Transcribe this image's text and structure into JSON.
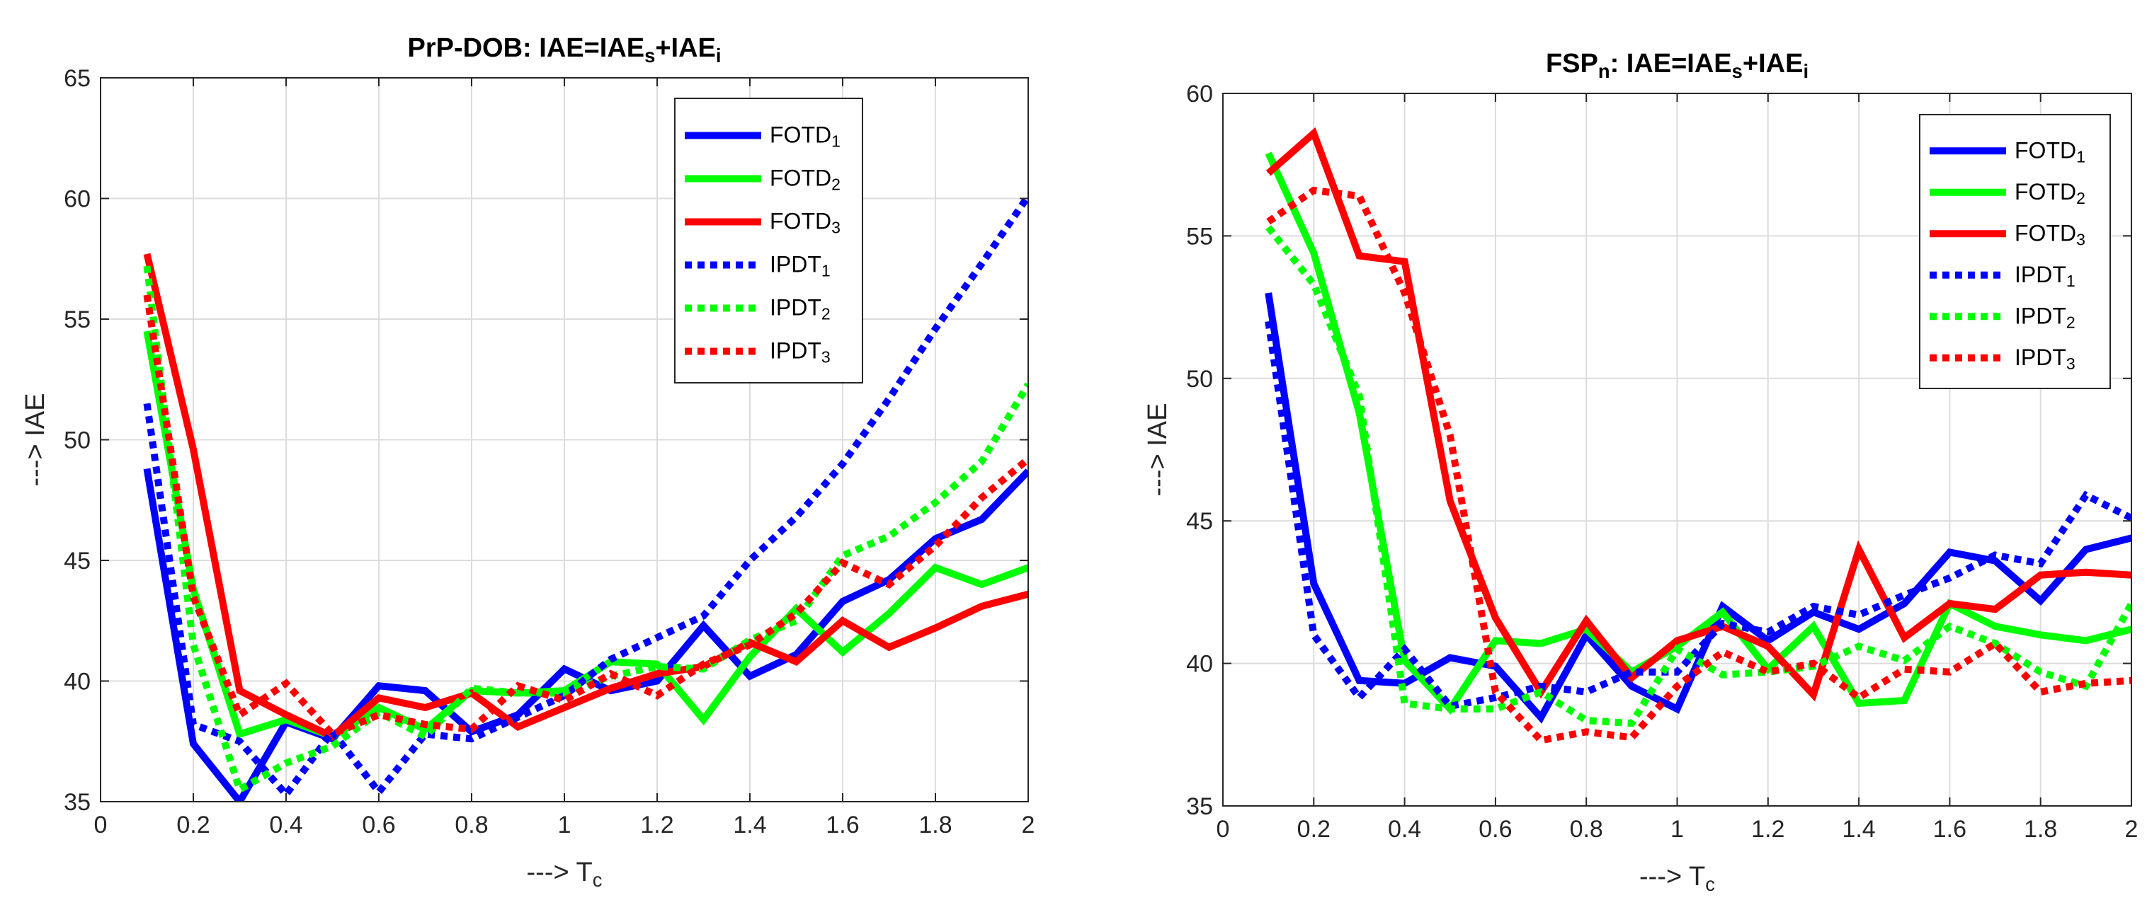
{
  "chart_data": [
    {
      "type": "line",
      "title": {
        "main": "PrP-DOB: IAE=IAE",
        "parts": [
          {
            "text": "s",
            "sub": true
          },
          {
            "text": "+IAE",
            "sub": false
          },
          {
            "text": "i",
            "sub": true
          }
        ]
      },
      "xlabel": {
        "main": "---> T",
        "sub": "c"
      },
      "ylabel": "---> IAE",
      "xlim": [
        0,
        2
      ],
      "ylim": [
        35,
        65
      ],
      "xticks": [
        0,
        0.2,
        0.4,
        0.6,
        0.8,
        1,
        1.2,
        1.4,
        1.6,
        1.8,
        2
      ],
      "xtick_labels": [
        "0",
        "0.2",
        "0.4",
        "0.6",
        "0.8",
        "1",
        "1.2",
        "1.4",
        "1.6",
        "1.8",
        "2"
      ],
      "yticks": [
        35,
        40,
        45,
        50,
        55,
        60,
        65
      ],
      "ytick_labels": [
        "35",
        "40",
        "45",
        "50",
        "55",
        "60",
        "65"
      ],
      "grid": true,
      "legend_position": "top-right",
      "x": [
        0.1,
        0.2,
        0.3,
        0.4,
        0.5,
        0.6,
        0.7,
        0.8,
        0.9,
        1.0,
        1.1,
        1.2,
        1.3,
        1.4,
        1.5,
        1.6,
        1.7,
        1.8,
        1.9,
        2.0
      ],
      "series": [
        {
          "name": "FOTD",
          "sub": "1",
          "color": "#0000ff",
          "style": "solid",
          "values": [
            48.8,
            37.4,
            35.0,
            38.3,
            37.6,
            39.8,
            39.6,
            37.9,
            38.6,
            40.5,
            39.6,
            40.0,
            42.3,
            40.2,
            41.1,
            43.3,
            44.2,
            45.9,
            46.7,
            48.7
          ]
        },
        {
          "name": "FOTD",
          "sub": "2",
          "color": "#00ff00",
          "style": "solid",
          "values": [
            54.5,
            43.8,
            37.8,
            38.4,
            37.7,
            38.9,
            38.0,
            39.6,
            39.5,
            39.6,
            40.8,
            40.7,
            38.4,
            41.0,
            43.0,
            41.2,
            42.8,
            44.7,
            44.0,
            44.7
          ]
        },
        {
          "name": "FOTD",
          "sub": "3",
          "color": "#ff0000",
          "style": "solid",
          "values": [
            57.7,
            49.6,
            39.6,
            38.6,
            37.7,
            39.3,
            38.9,
            39.5,
            38.1,
            38.9,
            39.7,
            40.3,
            40.6,
            41.6,
            40.8,
            42.5,
            41.4,
            42.2,
            43.1,
            43.6
          ]
        },
        {
          "name": "IPDT",
          "sub": "1",
          "color": "#0000ff",
          "style": "dotted",
          "values": [
            51.5,
            38.2,
            37.5,
            35.3,
            37.9,
            35.4,
            37.8,
            37.6,
            38.5,
            39.4,
            40.9,
            41.8,
            42.7,
            45.0,
            46.8,
            49.0,
            51.7,
            54.6,
            57.3,
            60.1
          ]
        },
        {
          "name": "IPDT",
          "sub": "2",
          "color": "#00ff00",
          "style": "dotted",
          "values": [
            57.2,
            41.5,
            35.5,
            36.6,
            37.3,
            38.7,
            37.7,
            39.7,
            39.5,
            39.5,
            40.2,
            40.6,
            40.5,
            41.7,
            42.5,
            45.2,
            46.0,
            47.4,
            49.1,
            52.3
          ]
        },
        {
          "name": "IPDT",
          "sub": "3",
          "color": "#ff0000",
          "style": "dotted",
          "values": [
            56.0,
            43.5,
            38.6,
            39.9,
            37.8,
            38.6,
            38.2,
            38.0,
            39.8,
            39.2,
            40.3,
            39.4,
            40.7,
            41.5,
            42.8,
            44.9,
            44.0,
            45.6,
            47.6,
            49.2
          ]
        }
      ]
    },
    {
      "type": "line",
      "title": {
        "main": "FSP",
        "parts": [
          {
            "text": "n",
            "sub": true
          },
          {
            "text": ": IAE=IAE",
            "sub": false
          },
          {
            "text": "s",
            "sub": true
          },
          {
            "text": "+IAE",
            "sub": false
          },
          {
            "text": "i",
            "sub": true
          }
        ]
      },
      "xlabel": {
        "main": "---> T",
        "sub": "c"
      },
      "ylabel": "---> IAE",
      "xlim": [
        0,
        2
      ],
      "ylim": [
        35,
        60
      ],
      "xticks": [
        0,
        0.2,
        0.4,
        0.6,
        0.8,
        1,
        1.2,
        1.4,
        1.6,
        1.8,
        2
      ],
      "xtick_labels": [
        "0",
        "0.2",
        "0.4",
        "0.6",
        "0.8",
        "1",
        "1.2",
        "1.4",
        "1.6",
        "1.8",
        "2"
      ],
      "yticks": [
        35,
        40,
        45,
        50,
        55,
        60
      ],
      "ytick_labels": [
        "35",
        "40",
        "45",
        "50",
        "55",
        "60"
      ],
      "grid": true,
      "legend_position": "top-right",
      "x": [
        0.1,
        0.2,
        0.3,
        0.4,
        0.5,
        0.6,
        0.7,
        0.8,
        0.9,
        1.0,
        1.1,
        1.2,
        1.3,
        1.4,
        1.5,
        1.6,
        1.7,
        1.8,
        1.9,
        2.0
      ],
      "series": [
        {
          "name": "FOTD",
          "sub": "1",
          "color": "#0000ff",
          "style": "solid",
          "values": [
            53.0,
            42.8,
            39.4,
            39.3,
            40.2,
            39.9,
            38.1,
            41.0,
            39.2,
            38.4,
            42.0,
            40.8,
            41.8,
            41.2,
            42.1,
            43.9,
            43.6,
            42.2,
            44.0,
            44.4
          ]
        },
        {
          "name": "FOTD",
          "sub": "2",
          "color": "#00ff00",
          "style": "solid",
          "values": [
            57.9,
            54.4,
            48.8,
            40.1,
            38.4,
            40.8,
            40.7,
            41.2,
            39.7,
            40.6,
            41.8,
            39.8,
            41.3,
            38.6,
            38.7,
            42.1,
            41.3,
            41.0,
            40.8,
            41.2
          ]
        },
        {
          "name": "FOTD",
          "sub": "3",
          "color": "#ff0000",
          "style": "solid",
          "values": [
            57.2,
            58.6,
            54.3,
            54.1,
            45.7,
            41.6,
            39.0,
            41.5,
            39.5,
            40.8,
            41.3,
            40.6,
            38.9,
            44.0,
            40.9,
            42.1,
            41.9,
            43.1,
            43.2,
            43.1
          ]
        },
        {
          "name": "IPDT",
          "sub": "1",
          "color": "#0000ff",
          "style": "dotted",
          "values": [
            52.0,
            41.0,
            38.8,
            40.5,
            38.5,
            38.8,
            39.2,
            39.0,
            39.7,
            39.7,
            41.4,
            41.1,
            42.0,
            41.7,
            42.4,
            43.0,
            43.8,
            43.5,
            45.9,
            45.1
          ]
        },
        {
          "name": "IPDT",
          "sub": "2",
          "color": "#00ff00",
          "style": "dotted",
          "values": [
            55.3,
            53.3,
            49.4,
            38.6,
            38.4,
            38.4,
            39.0,
            38.0,
            37.9,
            40.5,
            39.6,
            39.7,
            39.9,
            40.6,
            40.1,
            41.3,
            40.7,
            39.7,
            39.2,
            42.1
          ]
        },
        {
          "name": "IPDT",
          "sub": "3",
          "color": "#ff0000",
          "style": "dotted",
          "values": [
            55.5,
            56.6,
            56.4,
            53.0,
            48.0,
            39.0,
            37.3,
            37.6,
            37.4,
            39.2,
            40.4,
            39.7,
            40.0,
            38.8,
            39.8,
            39.7,
            40.7,
            39.0,
            39.3,
            39.4
          ]
        }
      ]
    }
  ]
}
